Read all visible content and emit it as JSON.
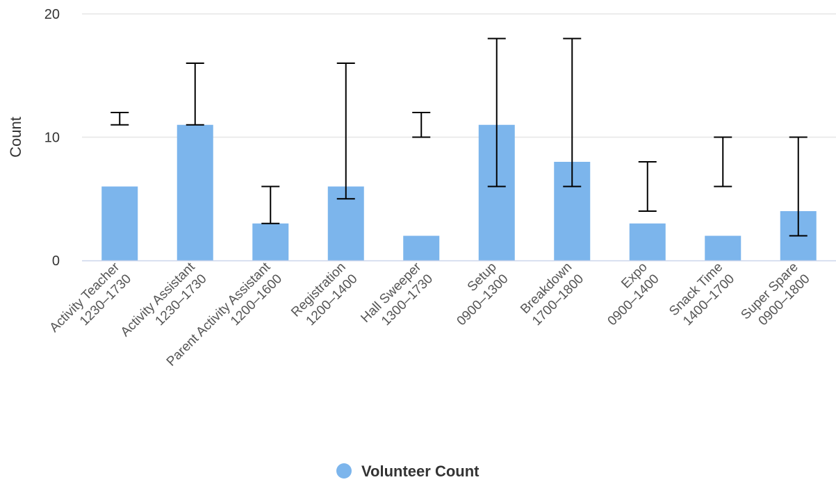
{
  "chart_data": {
    "type": "bar",
    "categories": [
      [
        "Activity Teacher",
        "1230–1730"
      ],
      [
        "Activity Assistant",
        "1230–1730"
      ],
      [
        "Parent Activity Assistant",
        "1200–1600"
      ],
      [
        "Registration",
        "1200–1400"
      ],
      [
        "Hall Sweeper",
        "1300–1730"
      ],
      [
        "Setup",
        "0900–1300"
      ],
      [
        "Breakdown",
        "1700–1800"
      ],
      [
        "Expo",
        "0900–1400"
      ],
      [
        "Snack Time",
        "1400–1700"
      ],
      [
        "Super Spare",
        "0900–1800"
      ]
    ],
    "series": [
      {
        "name": "Volunteer Count",
        "values": [
          6,
          11,
          3,
          6,
          2,
          11,
          8,
          3,
          2,
          4
        ],
        "error_ranges": [
          [
            11,
            12
          ],
          [
            11,
            16
          ],
          [
            3,
            6
          ],
          [
            5,
            16
          ],
          [
            10,
            12
          ],
          [
            6,
            18
          ],
          [
            6,
            18
          ],
          [
            4,
            8
          ],
          [
            6,
            10
          ],
          [
            2,
            10
          ]
        ],
        "color": "#7cb5ec"
      }
    ],
    "ylabel": "Count",
    "xlabel": "",
    "ylim": [
      0,
      20
    ],
    "yticks": [
      0,
      10,
      20
    ],
    "grid": true,
    "legend_position": "bottom-center"
  }
}
